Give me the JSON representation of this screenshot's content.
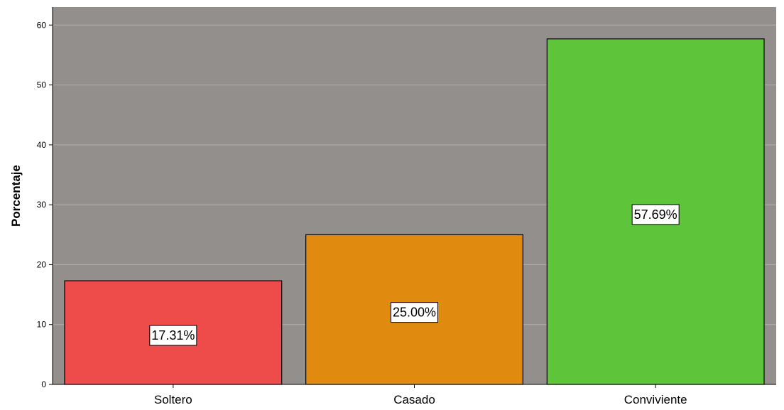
{
  "chart_data": {
    "type": "bar",
    "categories": [
      "Soltero",
      "Casado",
      "Conviviente"
    ],
    "values": [
      17.31,
      25.0,
      57.69
    ],
    "data_labels": [
      "17.31%",
      "25.00%",
      "57.69%"
    ],
    "colors": [
      "#ee4b4b",
      "#e08a0f",
      "#5ec43a"
    ],
    "ylabel": "Porcentaje",
    "xlabel": "",
    "title": "",
    "ylim": [
      0,
      63
    ],
    "yticks": [
      0,
      10,
      20,
      30,
      40,
      50,
      60
    ],
    "grid": true,
    "plot_background": "#938f8d",
    "gridline_color": "#b3afad"
  }
}
